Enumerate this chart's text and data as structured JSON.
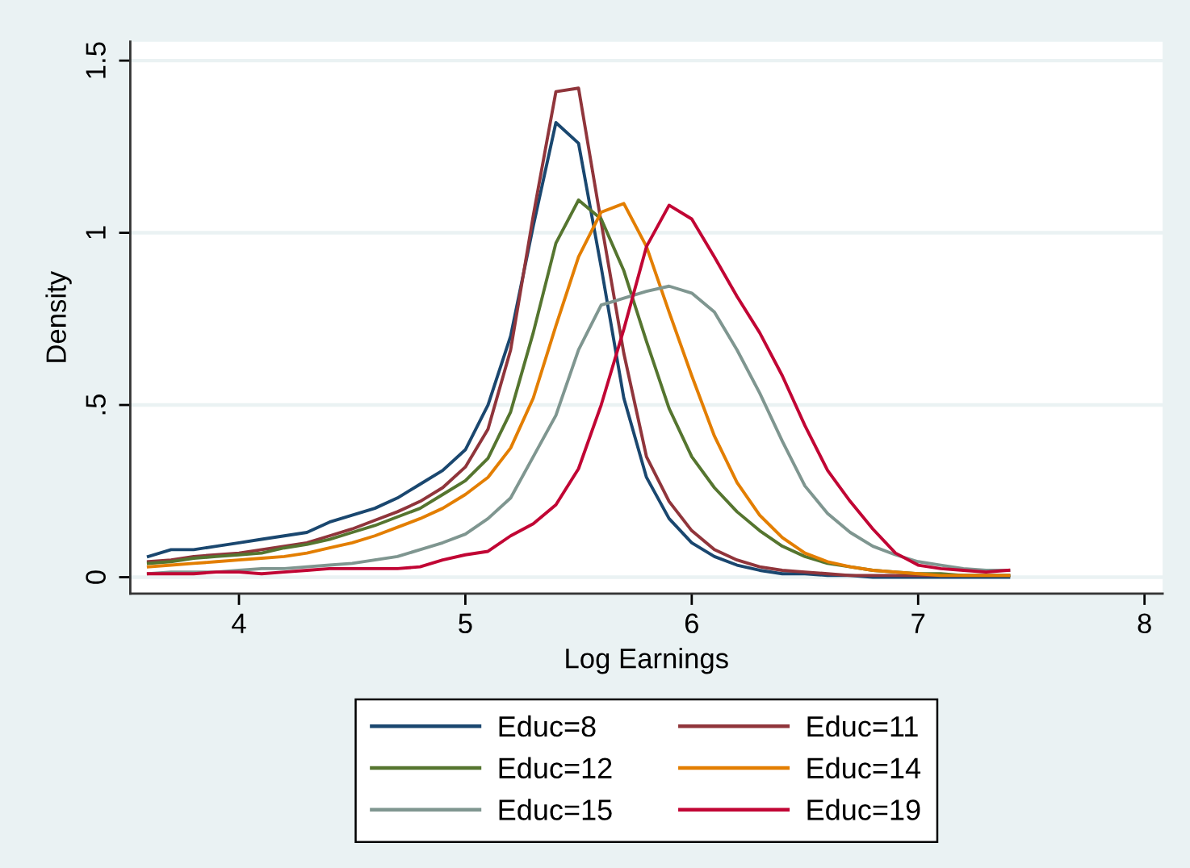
{
  "chart_data": {
    "type": "line",
    "xlabel": "Log Earnings",
    "ylabel": "Density",
    "x": [
      3.6,
      3.7,
      3.8,
      3.9,
      4.0,
      4.1,
      4.2,
      4.3,
      4.4,
      4.5,
      4.6,
      4.7,
      4.8,
      4.9,
      5.0,
      5.1,
      5.2,
      5.3,
      5.4,
      5.5,
      5.6,
      5.7,
      5.8,
      5.9,
      6.0,
      6.1,
      6.2,
      6.3,
      6.4,
      6.5,
      6.6,
      6.7,
      6.8,
      6.9,
      7.0,
      7.1,
      7.2,
      7.3,
      7.4
    ],
    "series": [
      {
        "name": "Educ=8",
        "color": "#1a476f",
        "values": [
          0.06,
          0.08,
          0.08,
          0.09,
          0.1,
          0.11,
          0.12,
          0.13,
          0.16,
          0.18,
          0.2,
          0.23,
          0.27,
          0.31,
          0.37,
          0.5,
          0.7,
          1.02,
          1.32,
          1.26,
          0.9,
          0.52,
          0.29,
          0.17,
          0.1,
          0.06,
          0.035,
          0.02,
          0.01,
          0.01,
          0.005,
          0.005,
          0,
          0,
          0,
          0,
          0,
          0,
          0
        ]
      },
      {
        "name": "Educ=11",
        "color": "#90353b",
        "values": [
          0.045,
          0.05,
          0.06,
          0.065,
          0.07,
          0.08,
          0.09,
          0.1,
          0.12,
          0.14,
          0.165,
          0.19,
          0.22,
          0.26,
          0.32,
          0.43,
          0.66,
          1.05,
          1.41,
          1.42,
          1.03,
          0.65,
          0.35,
          0.22,
          0.135,
          0.08,
          0.05,
          0.03,
          0.02,
          0.015,
          0.01,
          0.005,
          0.005,
          0.005,
          0.005,
          0.005,
          0.005,
          0.005,
          0.005
        ]
      },
      {
        "name": "Educ=12",
        "color": "#55752f",
        "values": [
          0.04,
          0.045,
          0.055,
          0.06,
          0.065,
          0.07,
          0.085,
          0.095,
          0.11,
          0.13,
          0.15,
          0.175,
          0.2,
          0.24,
          0.28,
          0.345,
          0.48,
          0.71,
          0.97,
          1.095,
          1.04,
          0.89,
          0.685,
          0.49,
          0.35,
          0.26,
          0.19,
          0.135,
          0.09,
          0.06,
          0.04,
          0.03,
          0.02,
          0.015,
          0.01,
          0.01,
          0.005,
          0.005,
          0.005
        ]
      },
      {
        "name": "Educ=14",
        "color": "#e37e00",
        "values": [
          0.03,
          0.035,
          0.04,
          0.045,
          0.05,
          0.055,
          0.06,
          0.07,
          0.085,
          0.1,
          0.12,
          0.145,
          0.17,
          0.2,
          0.24,
          0.29,
          0.375,
          0.52,
          0.73,
          0.93,
          1.06,
          1.085,
          0.96,
          0.77,
          0.585,
          0.41,
          0.275,
          0.18,
          0.115,
          0.07,
          0.045,
          0.03,
          0.02,
          0.015,
          0.01,
          0.005,
          0.005,
          0.005,
          0.005
        ]
      },
      {
        "name": "Educ=15",
        "color": "#7f9690",
        "values": [
          0.01,
          0.015,
          0.015,
          0.015,
          0.02,
          0.025,
          0.025,
          0.03,
          0.035,
          0.04,
          0.05,
          0.06,
          0.08,
          0.1,
          0.125,
          0.17,
          0.23,
          0.35,
          0.47,
          0.66,
          0.79,
          0.81,
          0.83,
          0.845,
          0.825,
          0.77,
          0.66,
          0.535,
          0.395,
          0.265,
          0.185,
          0.13,
          0.09,
          0.065,
          0.045,
          0.035,
          0.025,
          0.02,
          0.02
        ]
      },
      {
        "name": "Educ=19",
        "color": "#c10534",
        "values": [
          0.01,
          0.01,
          0.01,
          0.015,
          0.015,
          0.01,
          0.015,
          0.02,
          0.025,
          0.025,
          0.025,
          0.025,
          0.03,
          0.05,
          0.065,
          0.075,
          0.12,
          0.155,
          0.21,
          0.315,
          0.5,
          0.72,
          0.96,
          1.08,
          1.04,
          0.93,
          0.815,
          0.71,
          0.585,
          0.44,
          0.31,
          0.22,
          0.14,
          0.07,
          0.035,
          0.025,
          0.02,
          0.015,
          0.02
        ]
      }
    ],
    "xlim": [
      3.52,
      8.08
    ],
    "ylim": [
      -0.048,
      1.555
    ],
    "xticks": [
      4,
      5,
      6,
      7,
      8
    ],
    "yticks": [
      0,
      {
        "value": 0.5,
        "label": ".5"
      },
      1,
      1.5
    ],
    "grid": "y",
    "legend": "bottom"
  }
}
